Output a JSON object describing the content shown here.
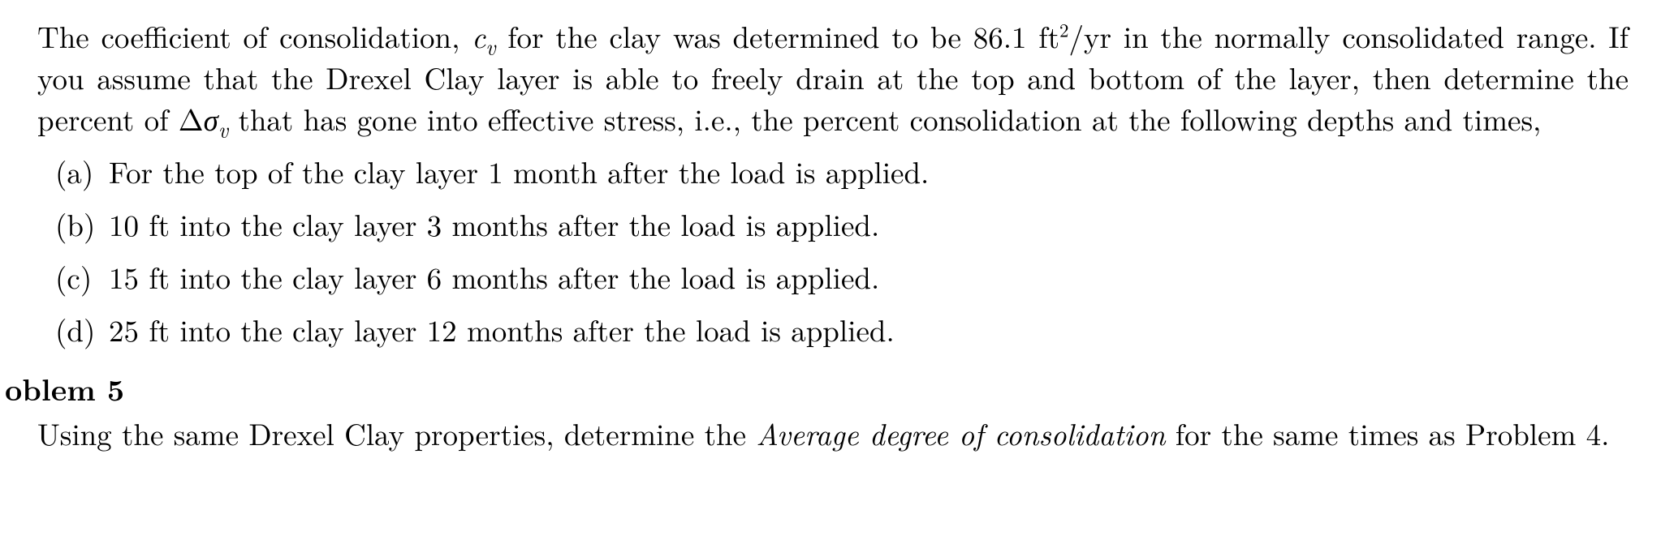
{
  "problem4": {
    "intro_pre": "The coefficient of consolidation, ",
    "cv_c": "c",
    "cv_sub": "v",
    "intro_mid1": " for the clay was determined to be ",
    "cv_value": "86.1 ft",
    "cv_unit_sup": "2",
    "cv_unit_rest": "/yr",
    "intro_mid2": " in the normally consolidated range. If you assume that the Drexel Clay layer is able to freely drain at the top and bottom of the layer, then determine the percent of ",
    "delta": "Δ",
    "sigma": "σ",
    "sigma_sub": "v",
    "intro_post": " that has gone into effective stress, i.e., the percent consolidation at the following depths and times,",
    "items": [
      {
        "marker": "(a)",
        "text": "For the top of the clay layer 1 month after the load is applied."
      },
      {
        "marker": "(b)",
        "text": "10 ft into the clay layer 3 months after the load is applied."
      },
      {
        "marker": "(c)",
        "text": "15 ft into the clay layer 6 months after the load is applied."
      },
      {
        "marker": "(d)",
        "text": "25 ft into the clay layer 12 months after the load is applied."
      }
    ]
  },
  "problem5": {
    "heading": "oblem 5",
    "text_pre": "Using the same Drexel Clay properties, determine the ",
    "emph": "Average degree of consolidation",
    "text_post": " for the same times as Problem 4."
  }
}
